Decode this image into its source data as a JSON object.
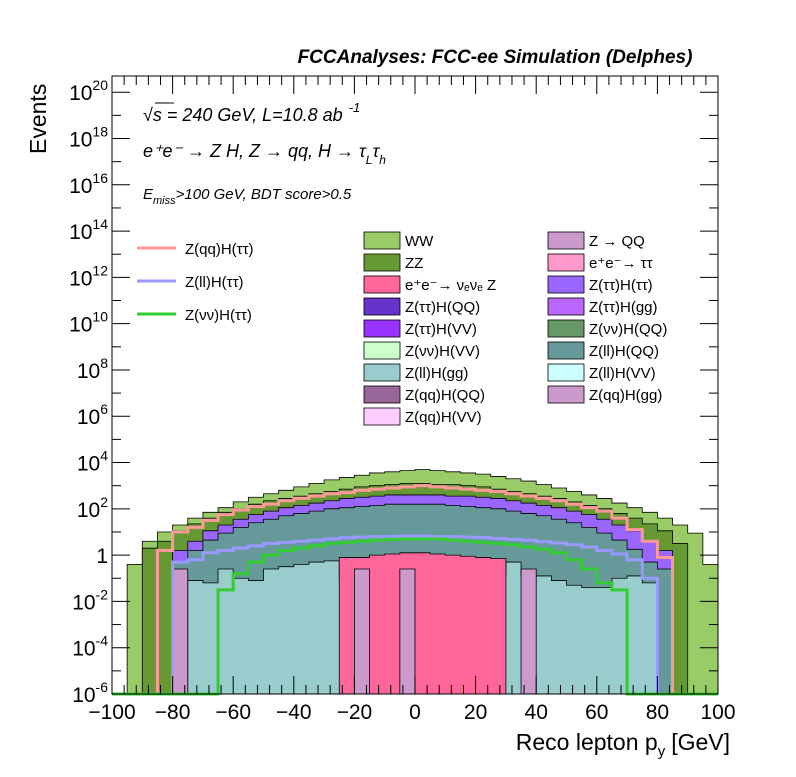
{
  "header": {
    "title": "FCCAnalyses: FCC-ee Simulation (Delphes)"
  },
  "annotations": {
    "line1": "√s = 240 GeV, L=10.8 ab",
    "line1_sup": "-1",
    "line2": "e⁺e⁻ → Z H, Z → qq, H → τ",
    "line2_sub_L": "L",
    "line2_tau2": "τ",
    "line2_sub_h": "h",
    "line3_E": "E",
    "line3_sub": "miss",
    "line3_rest": ">100 GeV, BDT score>0.5"
  },
  "legend": {
    "signal": [
      {
        "label": "Z(qq)H(ττ)",
        "color": "#ff9999"
      },
      {
        "label": "Z(ll)H(ττ)",
        "color": "#9999ff"
      },
      {
        "label": "Z(νν)H(ττ)",
        "color": "#33cc33"
      }
    ],
    "background_col1": [
      {
        "label": "WW",
        "color": "#99cc66"
      },
      {
        "label": "ZZ",
        "color": "#669933"
      },
      {
        "label": "e⁺e⁻→ νₑνₑ Z",
        "color": "#ff6699"
      },
      {
        "label": "Z(ττ)H(QQ)",
        "color": "#6633cc"
      },
      {
        "label": "Z(ττ)H(VV)",
        "color": "#9933ff"
      },
      {
        "label": "Z(νν)H(VV)",
        "color": "#ccffcc"
      },
      {
        "label": "Z(ll)H(gg)",
        "color": "#99cccc"
      },
      {
        "label": "Z(qq)H(QQ)",
        "color": "#996699"
      },
      {
        "label": "Z(qq)H(VV)",
        "color": "#ffccff"
      }
    ],
    "background_col2": [
      {
        "label": "Z → QQ",
        "color": "#cc99cc"
      },
      {
        "label": "e⁺e⁻→ ττ",
        "color": "#ff99cc"
      },
      {
        "label": "Z(ττ)H(ττ)",
        "color": "#9966ff"
      },
      {
        "label": "Z(ττ)H(gg)",
        "color": "#bb66ff"
      },
      {
        "label": "Z(νν)H(QQ)",
        "color": "#669966"
      },
      {
        "label": "Z(ll)H(QQ)",
        "color": "#669999"
      },
      {
        "label": "Z(ll)H(VV)",
        "color": "#ccffff"
      },
      {
        "label": "Z(qq)H(gg)",
        "color": "#cc99cc"
      }
    ]
  },
  "chart_data": {
    "type": "area",
    "xlabel": "Reco lepton p",
    "xlabel_sub": "y",
    "xlabel_unit": "[GeV]",
    "ylabel": "Events",
    "xlim": [
      -100,
      100
    ],
    "ylim_log10": [
      -6,
      20.7
    ],
    "log_y": true,
    "x_ticks": [
      "−100",
      "−80",
      "−60",
      "−40",
      "−20",
      "0",
      "20",
      "40",
      "60",
      "80",
      "100"
    ],
    "y_ticks": [
      {
        "base": "10",
        "exp": "20"
      },
      {
        "base": "10",
        "exp": "18"
      },
      {
        "base": "10",
        "exp": "16"
      },
      {
        "base": "10",
        "exp": "14"
      },
      {
        "base": "10",
        "exp": "12"
      },
      {
        "base": "10",
        "exp": "10"
      },
      {
        "base": "10",
        "exp": "8"
      },
      {
        "base": "10",
        "exp": "6"
      },
      {
        "base": "10",
        "exp": "4"
      },
      {
        "base": "10",
        "exp": "2"
      },
      {
        "base": "1",
        "exp": ""
      },
      {
        "base": "10",
        "exp": "-2"
      },
      {
        "base": "10",
        "exp": "-4"
      },
      {
        "base": "10",
        "exp": "-6"
      }
    ],
    "bin_edges": [
      -100,
      -95,
      -90,
      -85,
      -80,
      -75,
      -70,
      -65,
      -60,
      -55,
      -50,
      -45,
      -40,
      -35,
      -30,
      -25,
      -20,
      -15,
      -10,
      -5,
      0,
      5,
      10,
      15,
      20,
      25,
      30,
      35,
      40,
      45,
      50,
      55,
      60,
      65,
      70,
      75,
      80,
      85,
      90,
      95,
      100
    ],
    "stack_log10": [
      {
        "name": "WW",
        "color": "#99cc66",
        "values": [
          -6,
          -0.4,
          0.6,
          1.0,
          1.3,
          1.6,
          1.85,
          2.05,
          2.3,
          2.5,
          2.65,
          2.8,
          2.95,
          3.1,
          3.25,
          3.35,
          3.45,
          3.55,
          3.6,
          3.65,
          3.7,
          3.65,
          3.6,
          3.55,
          3.5,
          3.4,
          3.3,
          3.2,
          3.05,
          2.9,
          2.75,
          2.6,
          2.45,
          2.25,
          2.05,
          1.85,
          1.6,
          1.3,
          0.95,
          -0.4
        ]
      },
      {
        "name": "ZZ",
        "color": "#669933",
        "values": [
          -6,
          -6,
          0.3,
          0.6,
          1.05,
          1.35,
          1.6,
          1.85,
          2.0,
          2.2,
          2.35,
          2.45,
          2.55,
          2.65,
          2.75,
          2.85,
          2.95,
          3.0,
          3.05,
          3.1,
          3.1,
          3.05,
          3.05,
          3.0,
          2.95,
          2.85,
          2.75,
          2.65,
          2.55,
          2.45,
          2.3,
          2.15,
          2.0,
          1.8,
          1.6,
          1.35,
          1.05,
          0.5,
          -6,
          -6
        ]
      },
      {
        "name": "Z(ττ)H(ττ)",
        "color": "#9966ff",
        "values": [
          -6,
          -6,
          -6,
          -6,
          0.2,
          0.6,
          1.05,
          1.3,
          1.55,
          1.75,
          1.9,
          2.05,
          2.15,
          2.25,
          2.35,
          2.45,
          2.5,
          2.55,
          2.6,
          2.6,
          2.6,
          2.6,
          2.55,
          2.55,
          2.5,
          2.45,
          2.35,
          2.25,
          2.15,
          2.05,
          1.9,
          1.75,
          1.55,
          1.3,
          1.05,
          0.6,
          0.2,
          -6,
          -6,
          -6
        ]
      },
      {
        "name": "Z(ll)H(QQ)",
        "color": "#669999",
        "values": [
          -6,
          -6,
          -6,
          -6,
          -0.3,
          0.2,
          0.65,
          0.95,
          1.2,
          1.4,
          1.55,
          1.7,
          1.8,
          1.9,
          2.0,
          2.05,
          2.1,
          2.15,
          2.2,
          2.2,
          2.2,
          2.2,
          2.15,
          2.1,
          2.05,
          2.0,
          1.9,
          1.8,
          1.7,
          1.55,
          1.4,
          1.2,
          0.95,
          0.65,
          0.25,
          -0.3,
          -0.6,
          -6,
          -6,
          -6
        ]
      },
      {
        "name": "Z(ll)H(gg)",
        "color": "#99cccc",
        "values": [
          -6,
          -6,
          -6,
          -6,
          -6,
          -1.1,
          -1.2,
          -0.6,
          -1.0,
          -1.1,
          -0.6,
          -0.5,
          -0.4,
          -0.3,
          -0.25,
          -1.0,
          -1.0,
          -1.0,
          -1.2,
          -1.2,
          -1.2,
          -1.2,
          -1.2,
          -1.0,
          -1.0,
          -0.9,
          -0.3,
          -0.9,
          -0.9,
          -1.1,
          -1.3,
          -1.4,
          -1.4,
          -1.0,
          -0.9,
          -1.2,
          -6,
          -6,
          -6,
          -6
        ]
      },
      {
        "name": "e⁺e⁻→ νₑνₑ Z",
        "color": "#ff6699",
        "values": [
          -6,
          -6,
          -6,
          -6,
          -6,
          -6,
          -6,
          -6,
          -6,
          -6,
          -6,
          -6,
          -6,
          -6,
          -6,
          -0.1,
          -0.1,
          0.0,
          0.05,
          0.1,
          0.1,
          0.05,
          0.0,
          -0.05,
          -0.1,
          -0.15,
          -6,
          -6,
          -6,
          -6,
          -6,
          -6,
          -6,
          -6,
          -6,
          -6,
          -6,
          -6,
          -6,
          -6
        ]
      },
      {
        "name": "Z → QQ",
        "color": "#cc99cc",
        "values": [
          -6,
          -6,
          -6,
          -6,
          -0.6,
          -6,
          -6,
          -6,
          -6,
          -6,
          -6,
          -6,
          -6,
          -6,
          -6,
          -6,
          -0.6,
          -6,
          -6,
          -0.6,
          -6,
          -6,
          -6,
          -6,
          -6,
          -6,
          -6,
          -0.6,
          -6,
          -6,
          -6,
          -6,
          -6,
          -6,
          -6,
          -6,
          -6,
          -6,
          -6,
          -6
        ]
      }
    ],
    "overlay_log10": [
      {
        "name": "Z(qq)H(ττ)",
        "color": "#ff9999",
        "values": [
          -6,
          -6,
          -6,
          0.2,
          1.0,
          1.2,
          1.5,
          1.75,
          1.95,
          2.1,
          2.2,
          2.35,
          2.45,
          2.55,
          2.65,
          2.7,
          2.8,
          2.85,
          2.9,
          2.95,
          3.0,
          2.95,
          2.9,
          2.85,
          2.8,
          2.75,
          2.65,
          2.55,
          2.45,
          2.35,
          2.2,
          2.05,
          1.9,
          1.6,
          1.1,
          0.6,
          -0.1,
          -6,
          -6,
          -6
        ]
      },
      {
        "name": "Z(ll)H(ττ)",
        "color": "#9999ff",
        "values": [
          -6,
          -6,
          -6,
          -6,
          -0.3,
          -0.2,
          0.1,
          0.2,
          0.3,
          0.4,
          0.5,
          0.55,
          0.6,
          0.65,
          0.7,
          0.75,
          0.78,
          0.8,
          0.8,
          0.82,
          0.82,
          0.8,
          0.8,
          0.78,
          0.76,
          0.72,
          0.68,
          0.64,
          0.58,
          0.52,
          0.45,
          0.35,
          0.2,
          0.05,
          -0.2,
          -1.0,
          -6,
          -6,
          -6,
          -6
        ]
      },
      {
        "name": "Z(νν)H(ττ)",
        "color": "#33cc33",
        "values": [
          -6,
          -6,
          -6,
          -6,
          -6,
          -6,
          -6,
          -1.5,
          -0.8,
          -0.3,
          0.0,
          0.2,
          0.3,
          0.4,
          0.5,
          0.55,
          0.6,
          0.65,
          0.68,
          0.7,
          0.7,
          0.7,
          0.65,
          0.6,
          0.55,
          0.5,
          0.45,
          0.35,
          0.25,
          0.1,
          -0.2,
          -0.6,
          -1.2,
          -1.5,
          -6,
          -6,
          -6,
          -6,
          -6,
          -6
        ]
      }
    ]
  }
}
